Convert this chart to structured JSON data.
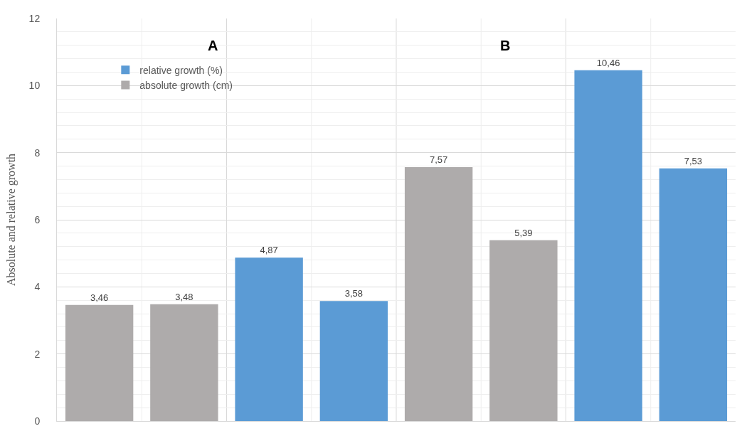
{
  "chart_data": {
    "type": "bar",
    "ylabel": "Absolute and relative growth",
    "categories": [
      null,
      null,
      null,
      null,
      null,
      null,
      null,
      null
    ],
    "series": [
      {
        "name": "relative growth (%)",
        "color": "#5b9bd5",
        "values": [
          null,
          null,
          4.87,
          3.58,
          null,
          null,
          10.46,
          7.53
        ],
        "value_labels": [
          null,
          null,
          "4,87",
          "3,58",
          null,
          null,
          "10,46",
          "7,53"
        ]
      },
      {
        "name": "absolute growth (cm)",
        "color": "#aeabab",
        "values": [
          3.46,
          3.48,
          null,
          null,
          7.57,
          5.39,
          null,
          null
        ],
        "value_labels": [
          "3,46",
          "3,48",
          null,
          null,
          "7,57",
          "5,39",
          null,
          null
        ]
      }
    ],
    "annotations": [
      "A",
      "B"
    ],
    "ylim": [
      0,
      12
    ],
    "yticks": [
      0,
      2,
      4,
      6,
      8,
      10,
      12
    ],
    "grid": true,
    "legend": "top left"
  }
}
